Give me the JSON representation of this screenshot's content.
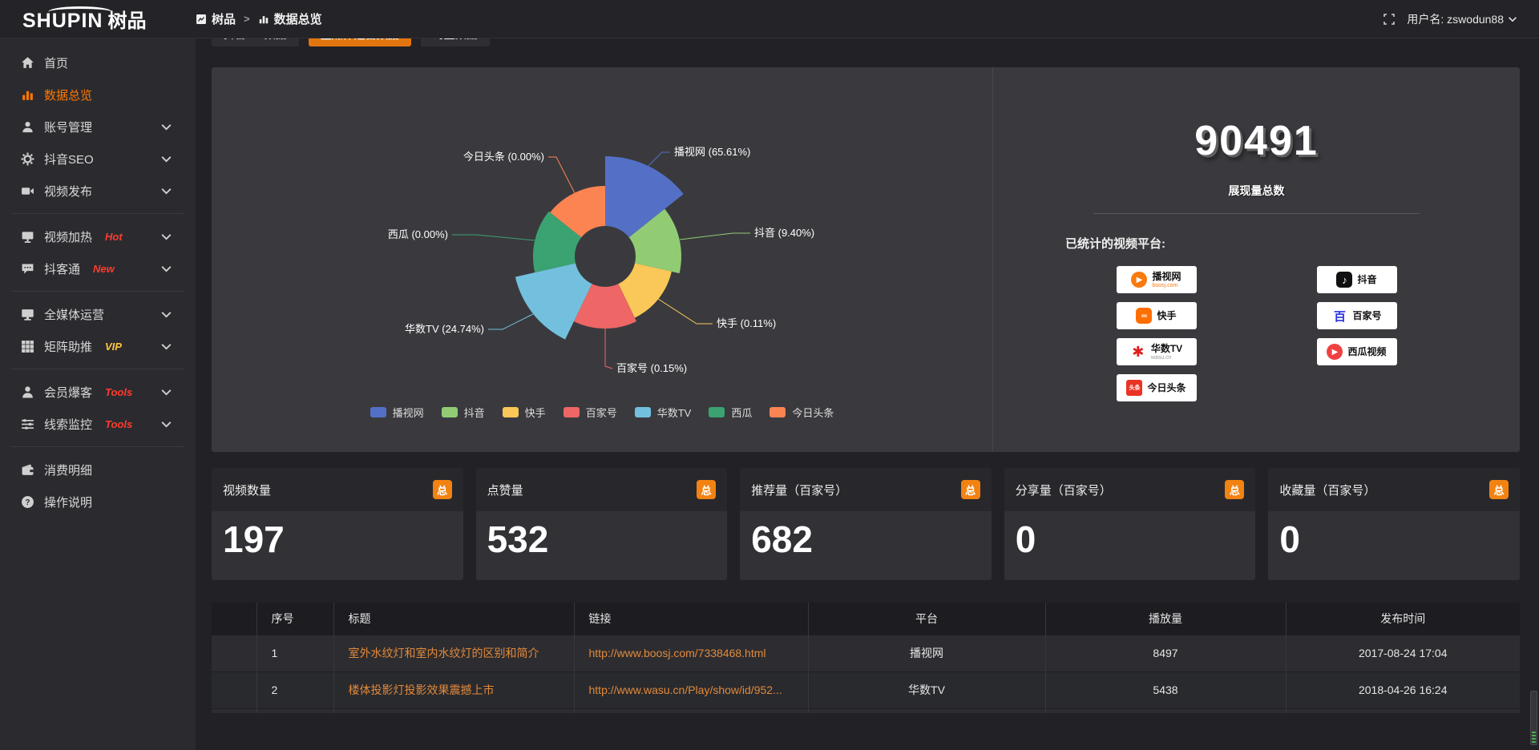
{
  "topbar": {
    "logo_primary": "SHUPIN",
    "logo_secondary": "树品",
    "breadcrumb": [
      {
        "label": "树品"
      },
      {
        "label": "数据总览"
      }
    ],
    "breadcrumb_separator": ">",
    "username": "用户名: zswodun88"
  },
  "sidebar": {
    "items": [
      {
        "label": "首页",
        "icon": "home-icon"
      },
      {
        "label": "数据总览",
        "icon": "bar-chart-icon",
        "active": true
      },
      {
        "label": "账号管理",
        "icon": "user-icon",
        "expandable": true
      },
      {
        "label": "抖音SEO",
        "icon": "gear-icon",
        "expandable": true
      },
      {
        "label": "视频发布",
        "icon": "video-icon",
        "expandable": true,
        "divider_after": true
      },
      {
        "label": "视频加热",
        "icon": "heat-screen-icon",
        "badge": "Hot",
        "badge_color": "#ff3b30",
        "expandable": true
      },
      {
        "label": "抖客通",
        "icon": "chat-icon",
        "badge": "New",
        "badge_color": "#ff3b30",
        "expandable": true,
        "divider_after": true
      },
      {
        "label": "全媒体运营",
        "icon": "monitor-icon",
        "expandable": true
      },
      {
        "label": "矩阵助推",
        "icon": "grid-icon",
        "badge": "VIP",
        "badge_color": "#ffc53d",
        "expandable": true,
        "divider_after": true
      },
      {
        "label": "会员爆客",
        "icon": "person-icon",
        "badge": "Tools",
        "badge_color": "#ff3b30",
        "expandable": true
      },
      {
        "label": "线索监控",
        "icon": "sliders-icon",
        "badge": "Tools",
        "badge_color": "#ff3b30",
        "expandable": true,
        "divider_after": true
      },
      {
        "label": "消费明细",
        "icon": "wallet-icon"
      },
      {
        "label": "操作说明",
        "icon": "question-icon"
      }
    ]
  },
  "tabs": [
    {
      "label": "抖音seo数据",
      "active": false
    },
    {
      "label": "全媒体运营数据",
      "active": true
    },
    {
      "label": "询盘数据",
      "active": false
    }
  ],
  "chart_data": {
    "type": "pie",
    "style": "nightingale-rose",
    "labels": [
      "播视网",
      "抖音",
      "快手",
      "百家号",
      "华数TV",
      "西瓜",
      "今日头条"
    ],
    "values_pct": [
      65.61,
      9.4,
      0.11,
      0.15,
      24.74,
      0.0,
      0.0
    ],
    "colors": [
      "#5470c6",
      "#91cc75",
      "#fac858",
      "#ee6666",
      "#73c0de",
      "#3ba272",
      "#fc8452"
    ],
    "label_format": "{name} ({value}%)",
    "legend": [
      "播视网",
      "抖音",
      "快手",
      "百家号",
      "华数TV",
      "西瓜",
      "今日头条"
    ],
    "legend_position": "bottom"
  },
  "summary": {
    "total": "90491",
    "total_label": "展现量总数",
    "platforms_label": "已统计的视频平台:",
    "platforms_left": [
      {
        "name": "播视网",
        "sub": "boosj.com",
        "icon": "boosj-logo"
      },
      {
        "name": "快手",
        "sub": "",
        "icon": "kuaishou-logo"
      },
      {
        "name": "华数TV",
        "sub": "wasu.cn",
        "icon": "wasu-logo"
      },
      {
        "name": "今日头条",
        "sub": "",
        "icon": "toutiao-logo"
      }
    ],
    "platforms_right": [
      {
        "name": "抖音",
        "sub": "",
        "icon": "douyin-logo"
      },
      {
        "name": "百家号",
        "sub": "",
        "icon": "baijiahao-logo"
      },
      {
        "name": "西瓜视频",
        "sub": "",
        "icon": "xigua-logo"
      }
    ]
  },
  "stat_cards": [
    {
      "label": "视频数量",
      "badge": "总",
      "value": "197"
    },
    {
      "label": "点赞量",
      "badge": "总",
      "value": "532"
    },
    {
      "label": "推荐量（百家号）",
      "badge": "总",
      "value": "682"
    },
    {
      "label": "分享量（百家号）",
      "badge": "总",
      "value": "0"
    },
    {
      "label": "收藏量（百家号）",
      "badge": "总",
      "value": "0"
    }
  ],
  "table": {
    "headers": [
      "序号",
      "标题",
      "链接",
      "平台",
      "播放量",
      "发布时间"
    ],
    "rows": [
      {
        "num": "1",
        "title": "室外水纹灯和室内水纹灯的区别和简介",
        "link": "http://www.boosj.com/7338468.html",
        "platform": "播视网",
        "views": "8497",
        "time": "2017-08-24 17:04"
      },
      {
        "num": "2",
        "title": "楼体投影灯投影效果震撼上市",
        "link": "http://www.wasu.cn/Play/show/id/952...",
        "platform": "华数TV",
        "views": "5438",
        "time": "2018-04-26 16:24"
      }
    ]
  },
  "colors": {
    "accent_orange": "#e2760e",
    "link_orange": "#e2893a",
    "active_menu_orange": "#ff7800",
    "badge_orange": "#f28211",
    "panel_bg": "#3a3a3e"
  }
}
